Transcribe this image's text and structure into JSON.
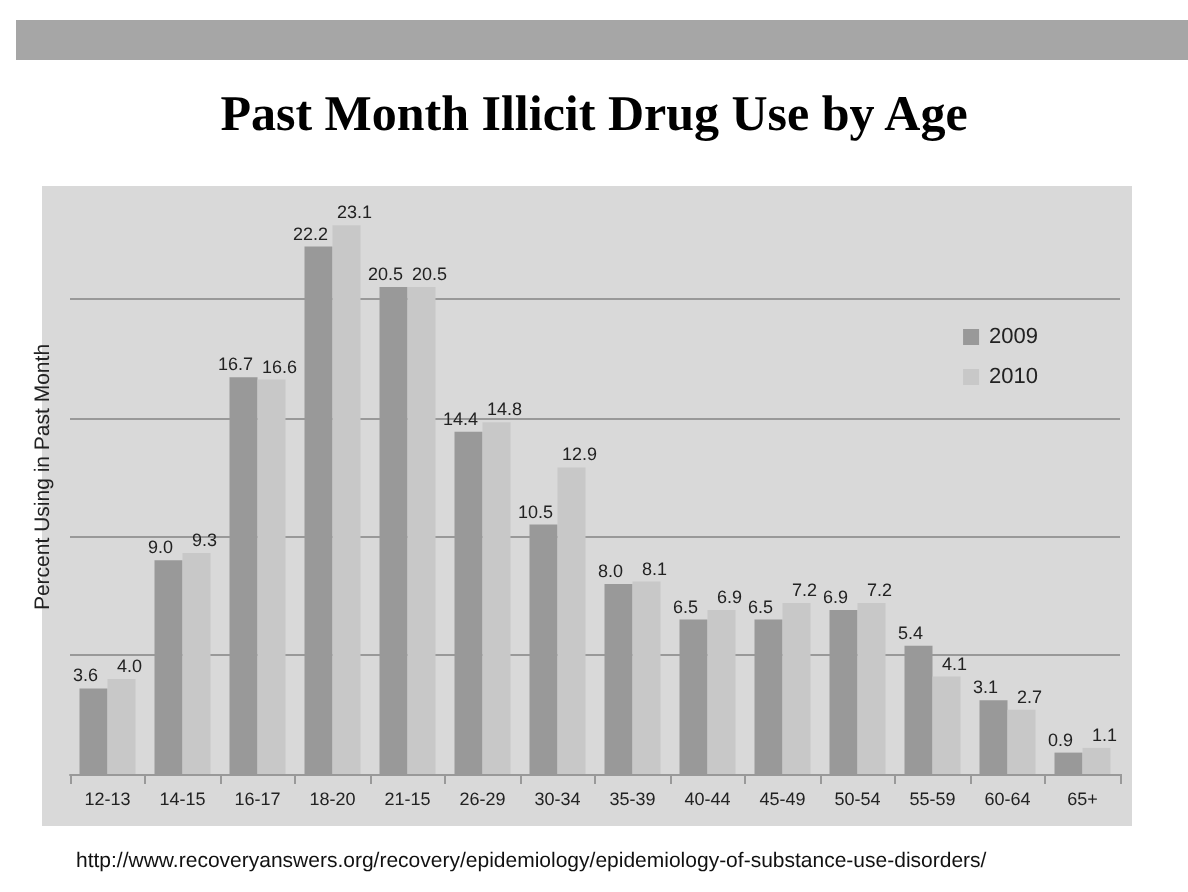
{
  "chart_data": {
    "type": "bar",
    "title": "Past Month Illicit Drug Use by Age",
    "ylabel": "Percent Using in Past Month",
    "categories": [
      "12-13",
      "14-15",
      "16-17",
      "18-20",
      "21-15",
      "26-29",
      "30-34",
      "35-39",
      "40-44",
      "45-49",
      "50-54",
      "55-59",
      "60-64",
      "65+"
    ],
    "series": [
      {
        "name": "2009",
        "color": "#999999",
        "values": [
          3.6,
          9.0,
          16.7,
          22.2,
          20.5,
          14.4,
          10.5,
          8.0,
          6.5,
          6.5,
          6.9,
          5.4,
          3.1,
          0.9
        ],
        "value_labels": [
          "3.6",
          "9.0",
          "16.7",
          "22.2",
          "20.5",
          "14.4",
          "10.5",
          "8.0",
          "6.5",
          "6.5",
          "6.9",
          "5.4",
          "3.1",
          "0.9"
        ]
      },
      {
        "name": "2010",
        "color": "#c8c8c8",
        "values": [
          4.0,
          9.3,
          16.6,
          23.1,
          20.5,
          14.8,
          12.9,
          8.1,
          6.9,
          7.2,
          7.2,
          4.1,
          2.7,
          1.1
        ],
        "value_labels": [
          "4.0",
          "9.3",
          "16.6",
          "23.1",
          "20.5",
          "14.8",
          "12.9",
          "8.1",
          "6.9",
          "7.2",
          "7.2",
          "4.1",
          "2.7",
          "1.1"
        ]
      }
    ],
    "ylim": [
      0,
      25
    ],
    "yticks": [
      {
        "value": 0,
        "label": null
      },
      {
        "value": 5,
        "label": null
      },
      {
        "value": 10,
        "label": null
      },
      {
        "value": 15,
        "label": null
      },
      {
        "value": 20,
        "label": null
      }
    ],
    "tick_labels": "x",
    "grid": "y",
    "legend": "top right",
    "annotations": [
      "http://www.recoveryanswers.org/recovery/epidemiology/epidemiology-of-substance-use-disorders/"
    ]
  }
}
